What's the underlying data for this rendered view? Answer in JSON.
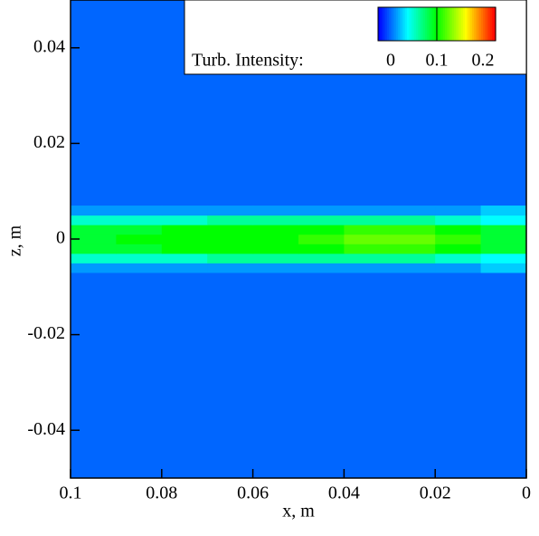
{
  "chart_data": {
    "type": "heatmap",
    "x_label": "x, m",
    "y_label": "z, m",
    "colorbar_label": "Turb. Intensity:",
    "xlim": [
      0.1,
      0
    ],
    "xticks": [
      0.1,
      0.08,
      0.06,
      0.04,
      0.02,
      0
    ],
    "ylim": [
      -0.05,
      0.05
    ],
    "yticks": [
      -0.04,
      -0.02,
      0,
      0.02,
      0.04
    ],
    "clim": [
      0,
      0.2
    ],
    "cticks": [
      0,
      0.1,
      0.2
    ],
    "colormap": [
      "#0000ff",
      "#00ffff",
      "#00ff00",
      "#ffff00",
      "#ff0000"
    ],
    "background": 0.02,
    "x": [
      0.095,
      0.085,
      0.075,
      0.065,
      0.055,
      0.045,
      0.035,
      0.025,
      0.015,
      0.005
    ],
    "z": [
      -0.006,
      -0.004,
      -0.002,
      0,
      0.002,
      0.004,
      0.006
    ],
    "values": [
      [
        0.03,
        0.03,
        0.03,
        0.03,
        0.03,
        0.03,
        0.03,
        0.03,
        0.03,
        0.04
      ],
      [
        0.06,
        0.06,
        0.06,
        0.07,
        0.07,
        0.07,
        0.07,
        0.07,
        0.06,
        0.05
      ],
      [
        0.09,
        0.09,
        0.1,
        0.1,
        0.1,
        0.1,
        0.11,
        0.11,
        0.1,
        0.09
      ],
      [
        0.09,
        0.1,
        0.1,
        0.1,
        0.1,
        0.11,
        0.12,
        0.12,
        0.11,
        0.09
      ],
      [
        0.09,
        0.09,
        0.1,
        0.1,
        0.1,
        0.1,
        0.11,
        0.11,
        0.1,
        0.09
      ],
      [
        0.06,
        0.06,
        0.06,
        0.07,
        0.07,
        0.07,
        0.07,
        0.07,
        0.06,
        0.05
      ],
      [
        0.03,
        0.03,
        0.03,
        0.03,
        0.03,
        0.03,
        0.03,
        0.03,
        0.03,
        0.04
      ]
    ]
  }
}
